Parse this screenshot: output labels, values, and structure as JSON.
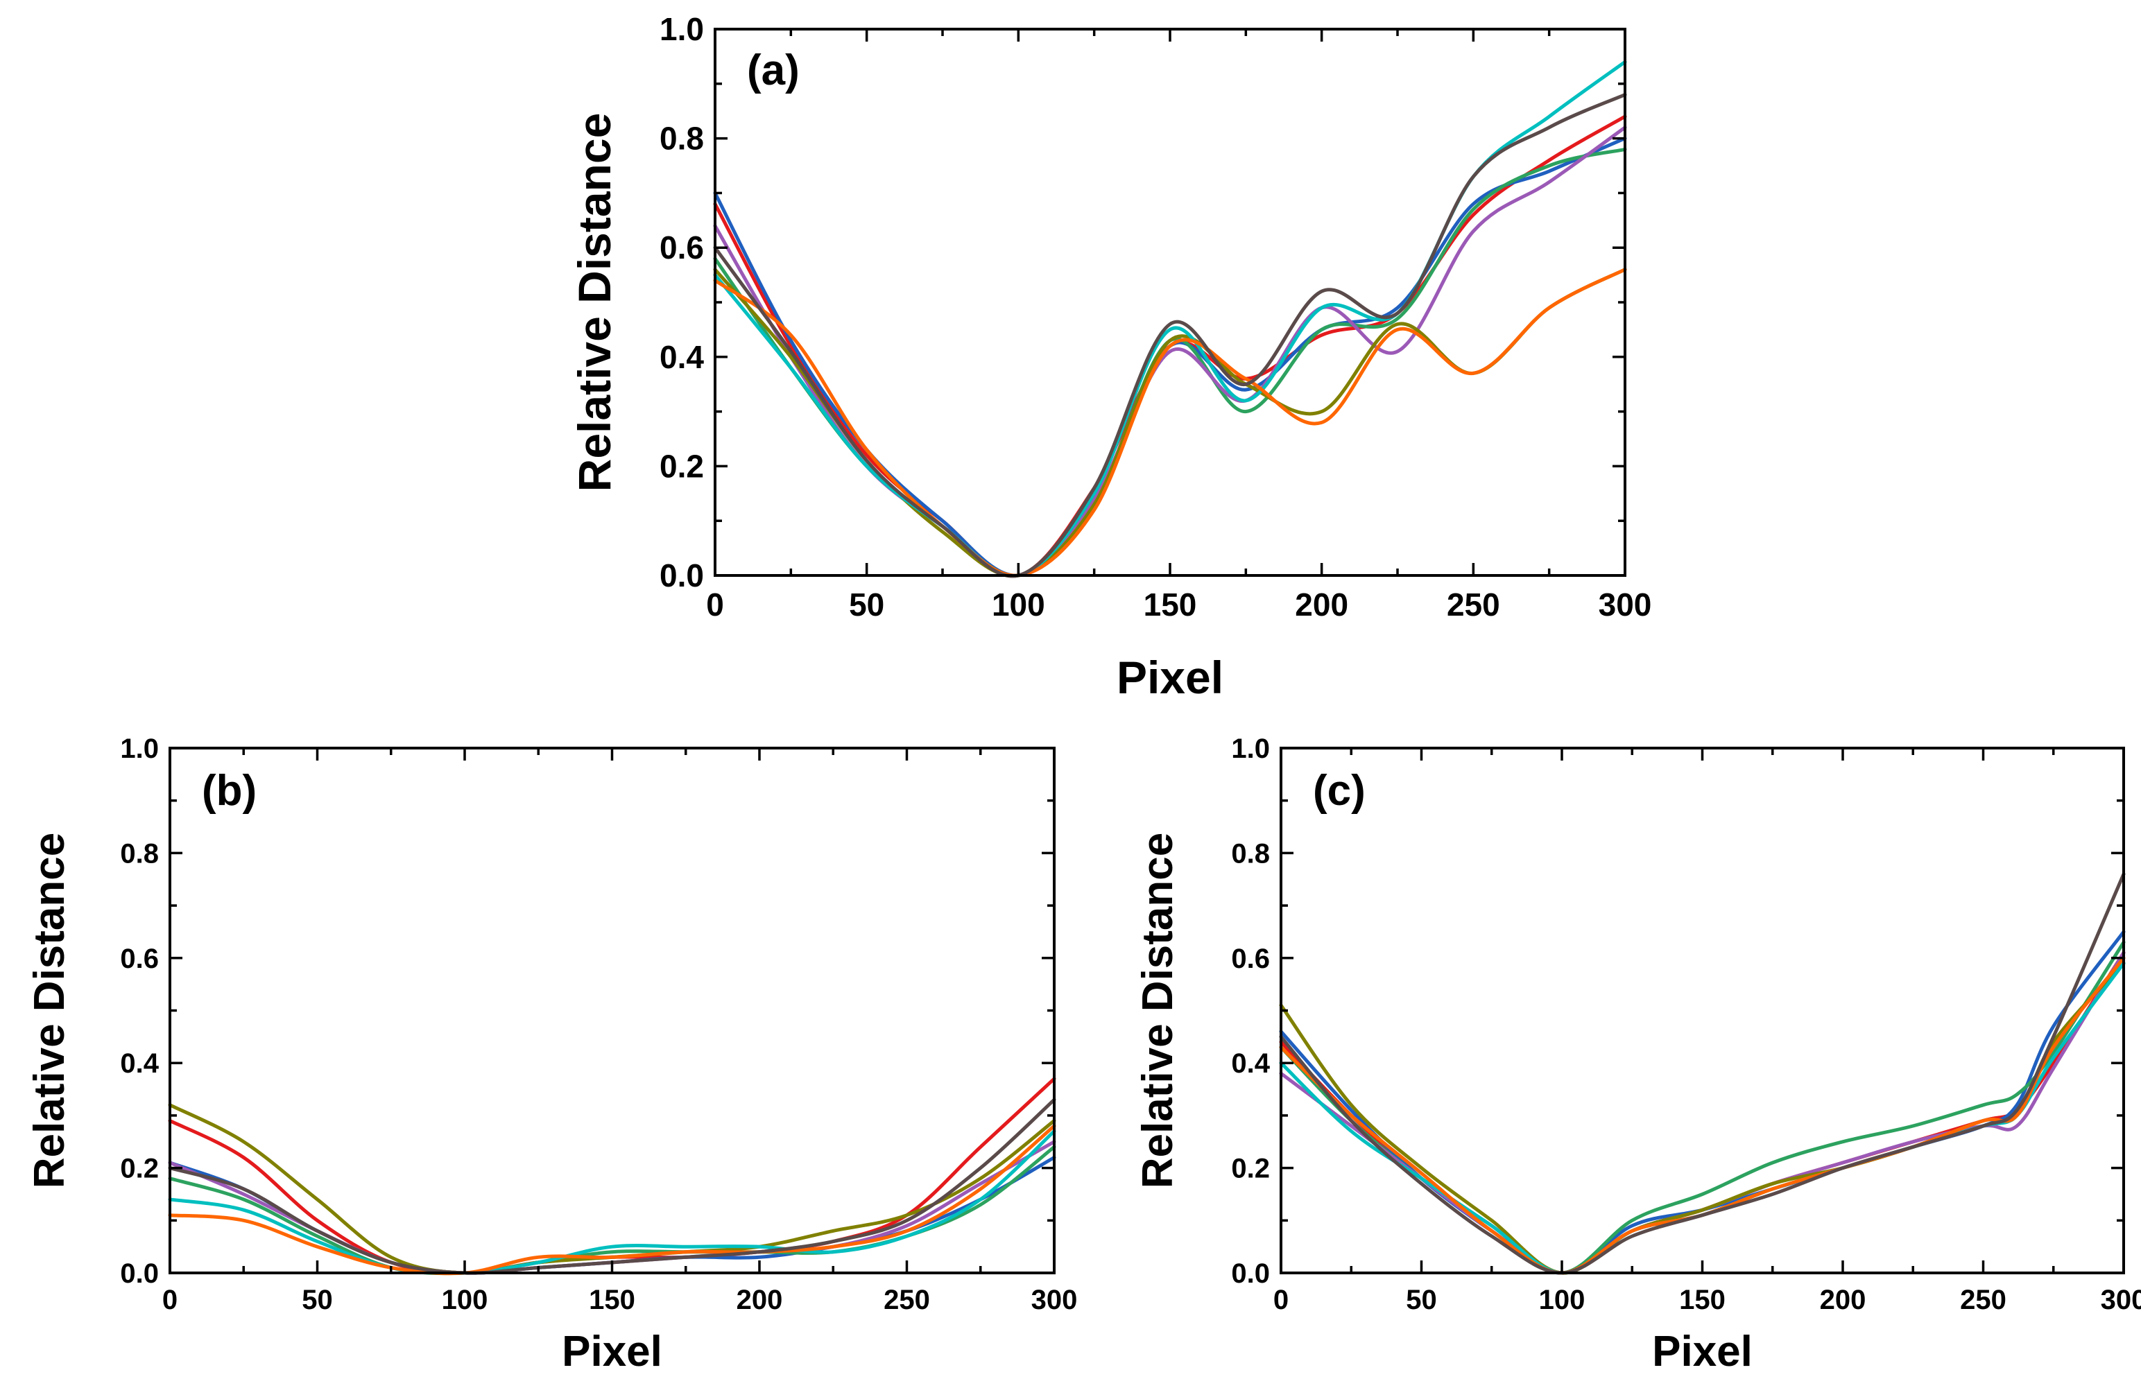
{
  "colors": [
    "#e41a1c",
    "#1f5fbf",
    "#2ca25f",
    "#9b59b6",
    "#808000",
    "#00bfbf",
    "#ff6600",
    "#5a4a4a"
  ],
  "chart_data": [
    {
      "type": "line",
      "panel_label": "(a)",
      "xlabel": "Pixel",
      "ylabel": "Relative Distance",
      "xlim": [
        0,
        300
      ],
      "ylim": [
        0,
        1.0
      ],
      "xticks": [
        "0",
        "50",
        "100",
        "150",
        "200",
        "250",
        "300"
      ],
      "yticks": [
        "0.0",
        "0.2",
        "0.4",
        "0.6",
        "0.8",
        "1.0"
      ],
      "x": [
        0,
        25,
        50,
        75,
        100,
        125,
        150,
        175,
        200,
        225,
        250,
        275,
        300
      ],
      "series": [
        {
          "values": [
            0.68,
            0.42,
            0.22,
            0.1,
            0.0,
            0.16,
            0.42,
            0.36,
            0.44,
            0.48,
            0.66,
            0.76,
            0.84
          ]
        },
        {
          "values": [
            0.7,
            0.43,
            0.23,
            0.1,
            0.0,
            0.13,
            0.42,
            0.34,
            0.45,
            0.49,
            0.68,
            0.74,
            0.8
          ]
        },
        {
          "values": [
            0.58,
            0.38,
            0.2,
            0.09,
            0.0,
            0.13,
            0.43,
            0.3,
            0.45,
            0.47,
            0.67,
            0.75,
            0.78
          ]
        },
        {
          "values": [
            0.64,
            0.4,
            0.2,
            0.09,
            0.0,
            0.14,
            0.41,
            0.32,
            0.49,
            0.41,
            0.63,
            0.72,
            0.82
          ]
        },
        {
          "values": [
            0.56,
            0.4,
            0.21,
            0.08,
            0.0,
            0.13,
            0.43,
            0.35,
            0.3,
            0.46,
            0.37,
            0.49,
            0.56
          ]
        },
        {
          "values": [
            0.55,
            0.38,
            0.2,
            0.09,
            0.0,
            0.15,
            0.45,
            0.32,
            0.49,
            0.48,
            0.73,
            0.84,
            0.94
          ]
        },
        {
          "values": [
            0.54,
            0.44,
            0.23,
            0.09,
            0.0,
            0.12,
            0.42,
            0.36,
            0.28,
            0.45,
            0.37,
            0.49,
            0.56
          ]
        },
        {
          "values": [
            0.6,
            0.41,
            0.21,
            0.09,
            0.0,
            0.16,
            0.46,
            0.35,
            0.52,
            0.48,
            0.73,
            0.82,
            0.88
          ]
        }
      ]
    },
    {
      "type": "line",
      "panel_label": "(b)",
      "xlabel": "Pixel",
      "ylabel": "Relative Distance",
      "xlim": [
        0,
        300
      ],
      "ylim": [
        0,
        1.0
      ],
      "xticks": [
        "0",
        "50",
        "100",
        "150",
        "200",
        "250",
        "300"
      ],
      "yticks": [
        "0.0",
        "0.2",
        "0.4",
        "0.6",
        "0.8",
        "1.0"
      ],
      "x": [
        0,
        25,
        50,
        75,
        100,
        125,
        150,
        175,
        200,
        225,
        250,
        275,
        300
      ],
      "series": [
        {
          "values": [
            0.29,
            0.22,
            0.1,
            0.02,
            0.0,
            0.02,
            0.03,
            0.03,
            0.04,
            0.06,
            0.11,
            0.24,
            0.37
          ]
        },
        {
          "values": [
            0.21,
            0.16,
            0.08,
            0.02,
            0.0,
            0.01,
            0.02,
            0.03,
            0.03,
            0.05,
            0.08,
            0.14,
            0.22
          ]
        },
        {
          "values": [
            0.18,
            0.14,
            0.07,
            0.01,
            0.0,
            0.02,
            0.04,
            0.04,
            0.04,
            0.04,
            0.07,
            0.13,
            0.24
          ]
        },
        {
          "values": [
            0.21,
            0.15,
            0.08,
            0.02,
            0.0,
            0.01,
            0.02,
            0.03,
            0.04,
            0.05,
            0.09,
            0.17,
            0.25
          ]
        },
        {
          "values": [
            0.32,
            0.25,
            0.14,
            0.03,
            0.0,
            0.02,
            0.03,
            0.04,
            0.05,
            0.08,
            0.11,
            0.18,
            0.29
          ]
        },
        {
          "values": [
            0.14,
            0.12,
            0.06,
            0.01,
            0.0,
            0.02,
            0.05,
            0.05,
            0.05,
            0.04,
            0.07,
            0.14,
            0.27
          ]
        },
        {
          "values": [
            0.11,
            0.1,
            0.05,
            0.01,
            0.0,
            0.03,
            0.03,
            0.04,
            0.04,
            0.05,
            0.08,
            0.16,
            0.28
          ]
        },
        {
          "values": [
            0.2,
            0.16,
            0.08,
            0.02,
            0.0,
            0.01,
            0.02,
            0.03,
            0.04,
            0.06,
            0.1,
            0.2,
            0.33
          ]
        }
      ]
    },
    {
      "type": "line",
      "panel_label": "(c)",
      "xlabel": "Pixel",
      "ylabel": "Relative Distance",
      "xlim": [
        0,
        300
      ],
      "ylim": [
        0,
        1.0
      ],
      "xticks": [
        "0",
        "50",
        "100",
        "150",
        "200",
        "250",
        "300"
      ],
      "yticks": [
        "0.0",
        "0.2",
        "0.4",
        "0.6",
        "0.8",
        "1.0"
      ],
      "x": [
        0,
        25,
        50,
        75,
        100,
        125,
        150,
        175,
        200,
        225,
        250,
        262,
        275,
        300
      ],
      "series": [
        {
          "values": [
            0.44,
            0.3,
            0.18,
            0.08,
            0.0,
            0.08,
            0.12,
            0.17,
            0.21,
            0.25,
            0.29,
            0.31,
            0.4,
            0.61
          ]
        },
        {
          "values": [
            0.46,
            0.31,
            0.18,
            0.08,
            0.0,
            0.09,
            0.12,
            0.16,
            0.2,
            0.24,
            0.28,
            0.32,
            0.47,
            0.65
          ]
        },
        {
          "values": [
            0.43,
            0.29,
            0.18,
            0.09,
            0.0,
            0.1,
            0.15,
            0.21,
            0.25,
            0.28,
            0.32,
            0.34,
            0.42,
            0.63
          ]
        },
        {
          "values": [
            0.38,
            0.28,
            0.18,
            0.08,
            0.0,
            0.08,
            0.12,
            0.17,
            0.21,
            0.25,
            0.28,
            0.28,
            0.39,
            0.61
          ]
        },
        {
          "values": [
            0.51,
            0.32,
            0.2,
            0.1,
            0.0,
            0.08,
            0.12,
            0.17,
            0.2,
            0.24,
            0.29,
            0.3,
            0.44,
            0.59
          ]
        },
        {
          "values": [
            0.4,
            0.27,
            0.18,
            0.09,
            0.0,
            0.08,
            0.11,
            0.16,
            0.2,
            0.24,
            0.28,
            0.3,
            0.41,
            0.59
          ]
        },
        {
          "values": [
            0.43,
            0.3,
            0.19,
            0.08,
            0.0,
            0.08,
            0.11,
            0.16,
            0.2,
            0.24,
            0.29,
            0.3,
            0.43,
            0.6
          ]
        },
        {
          "values": [
            0.45,
            0.29,
            0.17,
            0.07,
            0.0,
            0.07,
            0.11,
            0.15,
            0.2,
            0.24,
            0.28,
            0.31,
            0.45,
            0.76
          ]
        }
      ]
    }
  ]
}
